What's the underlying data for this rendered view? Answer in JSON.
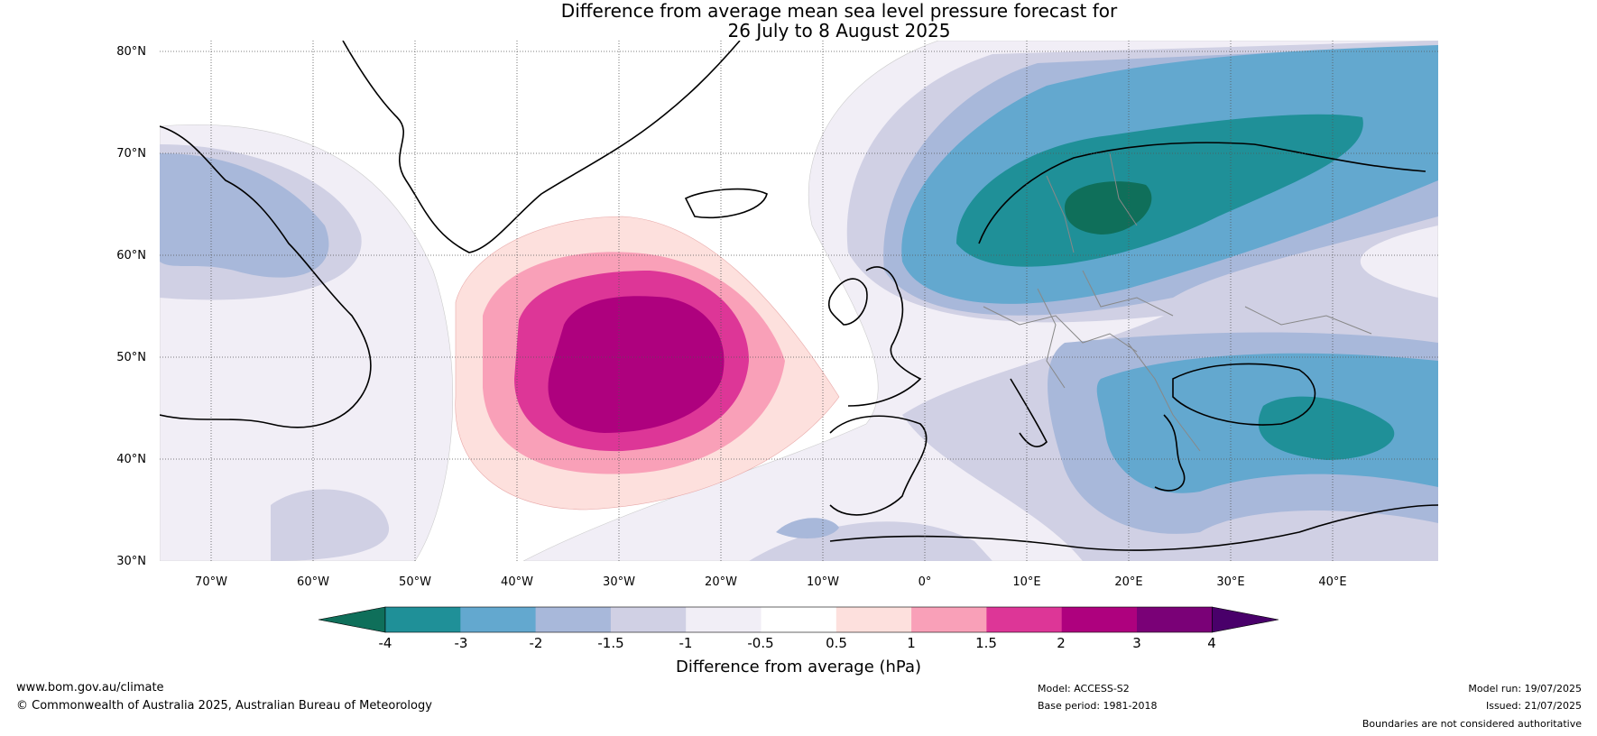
{
  "title": {
    "line1": "Difference from average mean sea level pressure forecast for",
    "line2": "26 July to 8 August 2025"
  },
  "axes": {
    "lat_labels": [
      "80°N",
      "70°N",
      "60°N",
      "50°N",
      "40°N",
      "30°N"
    ],
    "lon_labels": [
      "70°W",
      "60°W",
      "50°W",
      "40°W",
      "30°W",
      "20°W",
      "10°W",
      "0°",
      "10°E",
      "20°E",
      "30°E",
      "40°E"
    ]
  },
  "colorbar": {
    "ticks": [
      "-4",
      "-3",
      "-2",
      "-1.5",
      "-1",
      "-0.5",
      "0.5",
      "1",
      "1.5",
      "2",
      "3",
      "4"
    ],
    "label": "Difference from average (hPa)",
    "colors": [
      "#0f6f5a",
      "#1f9098",
      "#63a8cf",
      "#a8b8da",
      "#d0d0e4",
      "#f1eef6",
      "#ffffff",
      "#fde0dd",
      "#f9a0b8",
      "#dd3697",
      "#ae017e",
      "#7a0177",
      "#49006a"
    ]
  },
  "footer": {
    "website": "www.bom.gov.au/climate",
    "copyright": "© Commonwealth of Australia 2025, Australian Bureau of Meteorology",
    "model": "Model: ACCESS-S2",
    "base_period": "Base period: 1981-2018",
    "model_run": "Model run: 19/07/2025",
    "issued": "Issued: 21/07/2025",
    "disclaimer": "Boundaries are not considered authoritative"
  }
}
